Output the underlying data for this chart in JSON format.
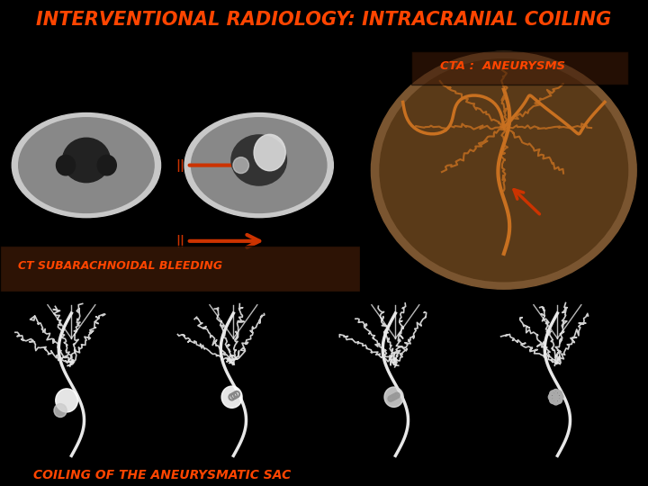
{
  "background_color": "#000000",
  "title": "INTERVENTIONAL RADIOLOGY: INTRACRANIAL COILING",
  "title_color": "#FF4500",
  "title_fontsize": 15,
  "title_fontstyle": "italic",
  "label_ct": "CT SUBARACHNOIDAL BLEEDING",
  "label_cta": "CTA :  ANEURYSMS",
  "label_bottom": "COILING OF THE ANEURYSMATIC SAC",
  "label_color": "#FF4500",
  "label_fontsize": 10,
  "top_bg_color": "#2a1a0a",
  "bottom_bg_color": "#0a0a0a"
}
